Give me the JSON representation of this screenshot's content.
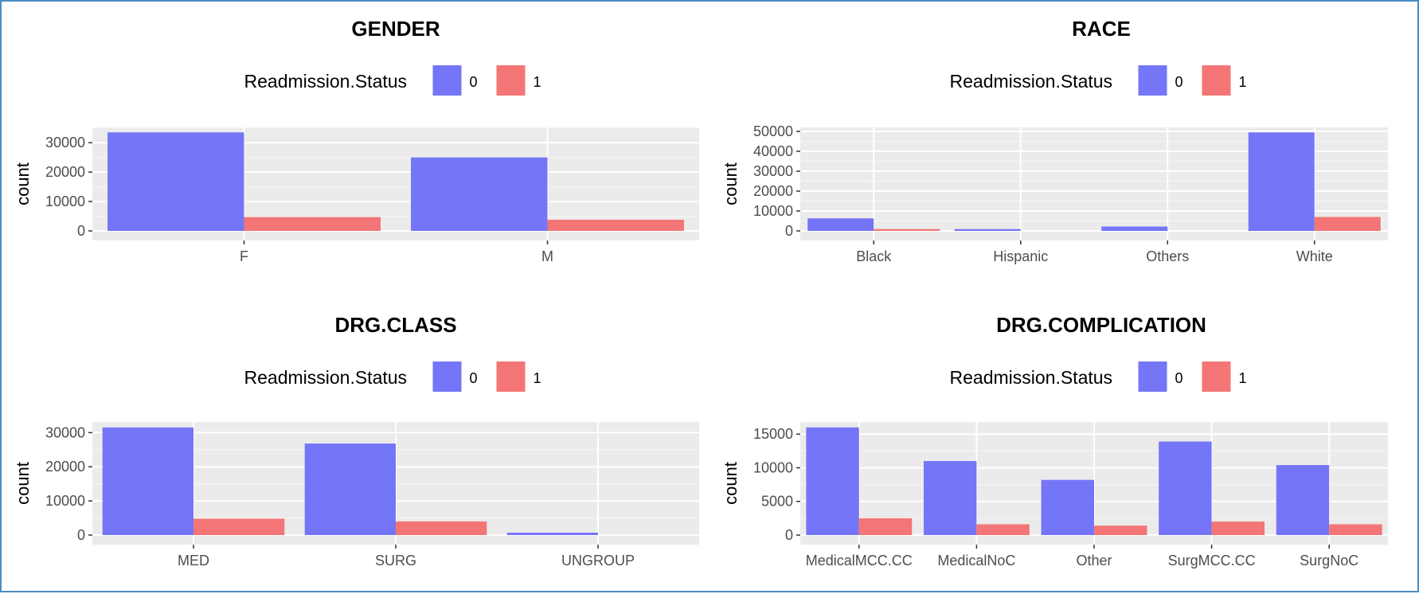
{
  "colors": {
    "status_0": "#7575f7",
    "status_1": "#f47575",
    "panel_bg": "#ebebeb",
    "grid_major": "#ffffff",
    "grid_minor": "#f5f5f5",
    "frame": "#4a8cc4"
  },
  "chart_data": [
    {
      "type": "bar",
      "title": "GENDER",
      "ylabel": "count",
      "legend_title": "Readmission.Status",
      "legend_placement": "top",
      "categories": [
        "F",
        "M"
      ],
      "series": [
        {
          "name": "0",
          "values": [
            33500,
            25000
          ]
        },
        {
          "name": "1",
          "values": [
            4700,
            3800
          ]
        }
      ],
      "yticks": [
        0,
        10000,
        20000,
        30000
      ],
      "ytick_labels": [
        "0",
        "10000",
        "20000",
        "30000"
      ],
      "ylim": [
        0,
        35200
      ],
      "grid": true
    },
    {
      "type": "bar",
      "title": "RACE",
      "ylabel": "count",
      "legend_title": "Readmission.Status",
      "legend_placement": "top",
      "categories": [
        "Black",
        "Hispanic",
        "Others",
        "White"
      ],
      "series": [
        {
          "name": "0",
          "values": [
            6300,
            900,
            2200,
            49500
          ]
        },
        {
          "name": "1",
          "values": [
            900,
            0,
            0,
            7000
          ]
        }
      ],
      "yticks": [
        0,
        10000,
        20000,
        30000,
        40000,
        50000
      ],
      "ytick_labels": [
        "0",
        "10000",
        "20000",
        "30000",
        "40000",
        "50000"
      ],
      "ylim": [
        0,
        52000
      ],
      "grid": true
    },
    {
      "type": "bar",
      "title": "DRG.CLASS",
      "ylabel": "count",
      "legend_title": "Readmission.Status",
      "legend_placement": "top",
      "categories": [
        "MED",
        "SURG",
        "UNGROUP"
      ],
      "series": [
        {
          "name": "0",
          "values": [
            31500,
            26800,
            700
          ]
        },
        {
          "name": "1",
          "values": [
            4800,
            4000,
            0
          ]
        }
      ],
      "yticks": [
        0,
        10000,
        20000,
        30000
      ],
      "ytick_labels": [
        "0",
        "10000",
        "20000",
        "30000"
      ],
      "ylim": [
        0,
        33100
      ],
      "grid": true
    },
    {
      "type": "bar",
      "title": "DRG.COMPLICATION",
      "ylabel": "count",
      "legend_title": "Readmission.Status",
      "legend_placement": "top",
      "categories": [
        "MedicalMCC.CC",
        "MedicalNoC",
        "Other",
        "SurgMCC.CC",
        "SurgNoC"
      ],
      "series": [
        {
          "name": "0",
          "values": [
            16000,
            11000,
            8200,
            13900,
            10400
          ]
        },
        {
          "name": "1",
          "values": [
            2500,
            1600,
            1400,
            2000,
            1600
          ]
        }
      ],
      "yticks": [
        0,
        5000,
        10000,
        15000
      ],
      "ytick_labels": [
        "0",
        "5000",
        "10000",
        "15000"
      ],
      "ylim": [
        0,
        16800
      ],
      "grid": true
    }
  ]
}
